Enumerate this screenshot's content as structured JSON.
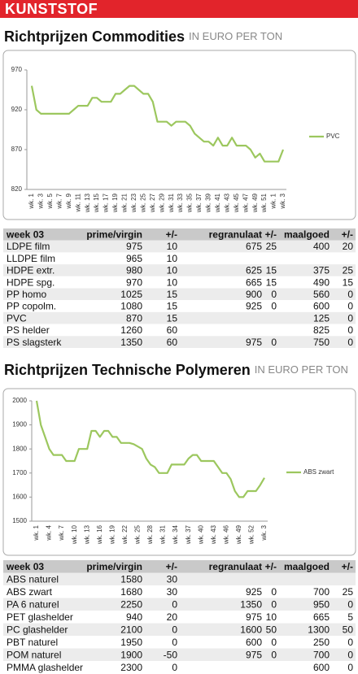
{
  "header": "KUNSTSTOF",
  "sections": [
    {
      "title": "Richtprijzen Commodities",
      "unit": "IN EURO PER TON",
      "table": {
        "header": [
          "week 03",
          "prime/virgin",
          "+/-",
          "regranulaat",
          "+/-",
          "maalgoed",
          "+/-"
        ],
        "rows": [
          [
            "LDPE film",
            975,
            10,
            675,
            25,
            400,
            20
          ],
          [
            "LLDPE film",
            965,
            10,
            null,
            null,
            null,
            null
          ],
          [
            "HDPE extr.",
            980,
            10,
            625,
            15,
            375,
            25
          ],
          [
            "HDPE spg.",
            970,
            10,
            665,
            15,
            490,
            15
          ],
          [
            "PP homo",
            1025,
            15,
            900,
            0,
            560,
            0
          ],
          [
            "PP copolm.",
            1080,
            15,
            925,
            0,
            600,
            0
          ],
          [
            "PVC",
            870,
            15,
            null,
            null,
            125,
            0
          ],
          [
            "PS helder",
            1260,
            60,
            null,
            null,
            825,
            0
          ],
          [
            "PS slagsterk",
            1350,
            60,
            975,
            0,
            750,
            0
          ]
        ]
      }
    },
    {
      "title": "Richtprijzen Technische Polymeren",
      "unit": "IN EURO PER TON",
      "table": {
        "header": [
          "week 03",
          "prime/virgin",
          "+/-",
          "regranulaat",
          "+/-",
          "maalgoed",
          "+/-"
        ],
        "rows": [
          [
            "ABS naturel",
            1580,
            30,
            null,
            null,
            null,
            null
          ],
          [
            "ABS zwart",
            1680,
            30,
            925,
            0,
            700,
            25
          ],
          [
            "PA 6 naturel",
            2250,
            0,
            1350,
            0,
            950,
            0
          ],
          [
            "PET glashelder",
            940,
            20,
            975,
            10,
            665,
            5
          ],
          [
            "PC glashelder",
            2100,
            0,
            1600,
            50,
            1300,
            50
          ],
          [
            "PBT naturel",
            1950,
            0,
            600,
            0,
            250,
            0
          ],
          [
            "POM naturel",
            1900,
            -50,
            975,
            0,
            700,
            0
          ],
          [
            "PMMA glashelder",
            2300,
            0,
            null,
            null,
            600,
            0
          ]
        ]
      }
    }
  ],
  "chart_data": [
    {
      "type": "line",
      "categories": [
        "wk. 1",
        null,
        "wk. 3",
        null,
        "wk. 5",
        null,
        "wk. 7",
        null,
        "wk. 9",
        null,
        "wk. 11",
        null,
        "wk. 13",
        null,
        "wk. 15",
        null,
        "wk. 17",
        null,
        "wk. 19",
        null,
        "wk. 21",
        null,
        "wk. 23",
        null,
        "wk. 25",
        null,
        "wk. 27",
        null,
        "wk. 29",
        null,
        "wk. 31",
        null,
        "wk. 33",
        null,
        "wk. 35",
        null,
        "wk. 37",
        null,
        "wk. 39",
        null,
        "wk. 41",
        null,
        "wk. 43",
        null,
        "wk. 45",
        null,
        "wk. 47",
        null,
        "wk. 49",
        null,
        "wk. 51",
        null,
        "wk. 1",
        null,
        "wk. 3"
      ],
      "series": [
        {
          "name": "PVC",
          "color": "#9cc75e",
          "values": [
            950,
            920,
            915,
            915,
            915,
            915,
            915,
            915,
            915,
            920,
            925,
            925,
            925,
            935,
            935,
            930,
            930,
            930,
            940,
            940,
            945,
            950,
            950,
            945,
            940,
            940,
            930,
            905,
            905,
            905,
            900,
            905,
            905,
            905,
            900,
            890,
            885,
            880,
            880,
            875,
            885,
            875,
            875,
            885,
            875,
            875,
            875,
            870,
            860,
            865,
            855,
            855,
            855,
            855,
            870
          ]
        }
      ],
      "ylim": [
        820,
        970
      ],
      "yticks": [
        820,
        870,
        920,
        970
      ],
      "grid": false,
      "legend": "right"
    },
    {
      "type": "line",
      "categories": [
        "wk. 1",
        null,
        null,
        "wk. 4",
        null,
        null,
        "wk. 7",
        null,
        null,
        "wk. 10",
        null,
        null,
        "wk. 13",
        null,
        null,
        "wk. 16",
        null,
        null,
        "wk. 19",
        null,
        null,
        "wk. 22",
        null,
        null,
        "wk. 25",
        null,
        null,
        "wk. 28",
        null,
        null,
        "wk. 31",
        null,
        null,
        "wk. 34",
        null,
        null,
        "wk. 37",
        null,
        null,
        "wk. 40",
        null,
        null,
        "wk. 43",
        null,
        null,
        "wk. 46",
        null,
        null,
        "wk. 49",
        null,
        null,
        "wk. 52",
        null,
        null,
        "wk. 3"
      ],
      "series": [
        {
          "name": "ABS zwart",
          "color": "#9cc75e",
          "values": [
            2000,
            1900,
            1850,
            1800,
            1775,
            1775,
            1775,
            1750,
            1750,
            1750,
            1800,
            1800,
            1800,
            1875,
            1875,
            1850,
            1875,
            1875,
            1850,
            1850,
            1825,
            1825,
            1825,
            1820,
            1810,
            1800,
            1760,
            1735,
            1725,
            1700,
            1700,
            1700,
            1735,
            1735,
            1735,
            1735,
            1760,
            1775,
            1775,
            1750,
            1750,
            1750,
            1750,
            1725,
            1700,
            1700,
            1675,
            1625,
            1600,
            1600,
            1625,
            1625,
            1625,
            1650,
            1680
          ]
        }
      ],
      "ylim": [
        1500,
        2000
      ],
      "yticks": [
        1500,
        1600,
        1700,
        1800,
        1900,
        2000
      ],
      "grid": false,
      "legend": "right"
    }
  ]
}
